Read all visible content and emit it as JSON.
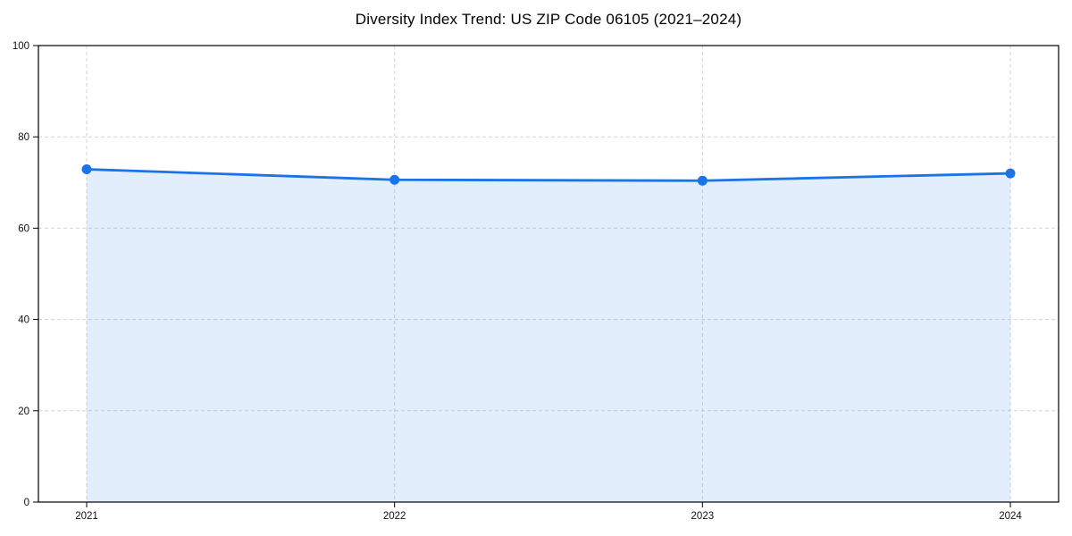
{
  "chart_data": {
    "type": "area",
    "title": "Diversity Index Trend: US ZIP Code 06105 (2021–2024)",
    "x": [
      2021,
      2022,
      2023,
      2024
    ],
    "values": [
      72.9,
      70.6,
      70.4,
      72.0
    ],
    "series_label": "Diversity Index",
    "xlabel": "",
    "ylabel": "",
    "ylim": [
      0,
      100
    ],
    "yticks": [
      0,
      20,
      40,
      60,
      80,
      100
    ],
    "xticks": [
      "2021",
      "2022",
      "2023",
      "2024"
    ],
    "grid": true,
    "grid_style": "dashed",
    "legend_position": "none",
    "colors": {
      "line": "#1a73e8",
      "marker": "#1a73e8",
      "fill": "rgba(26,115,232,0.12)",
      "grid": "#d4d4d4",
      "spine": "#000000",
      "tick_label": "#111111",
      "title": "#000000",
      "background": "#ffffff"
    }
  }
}
